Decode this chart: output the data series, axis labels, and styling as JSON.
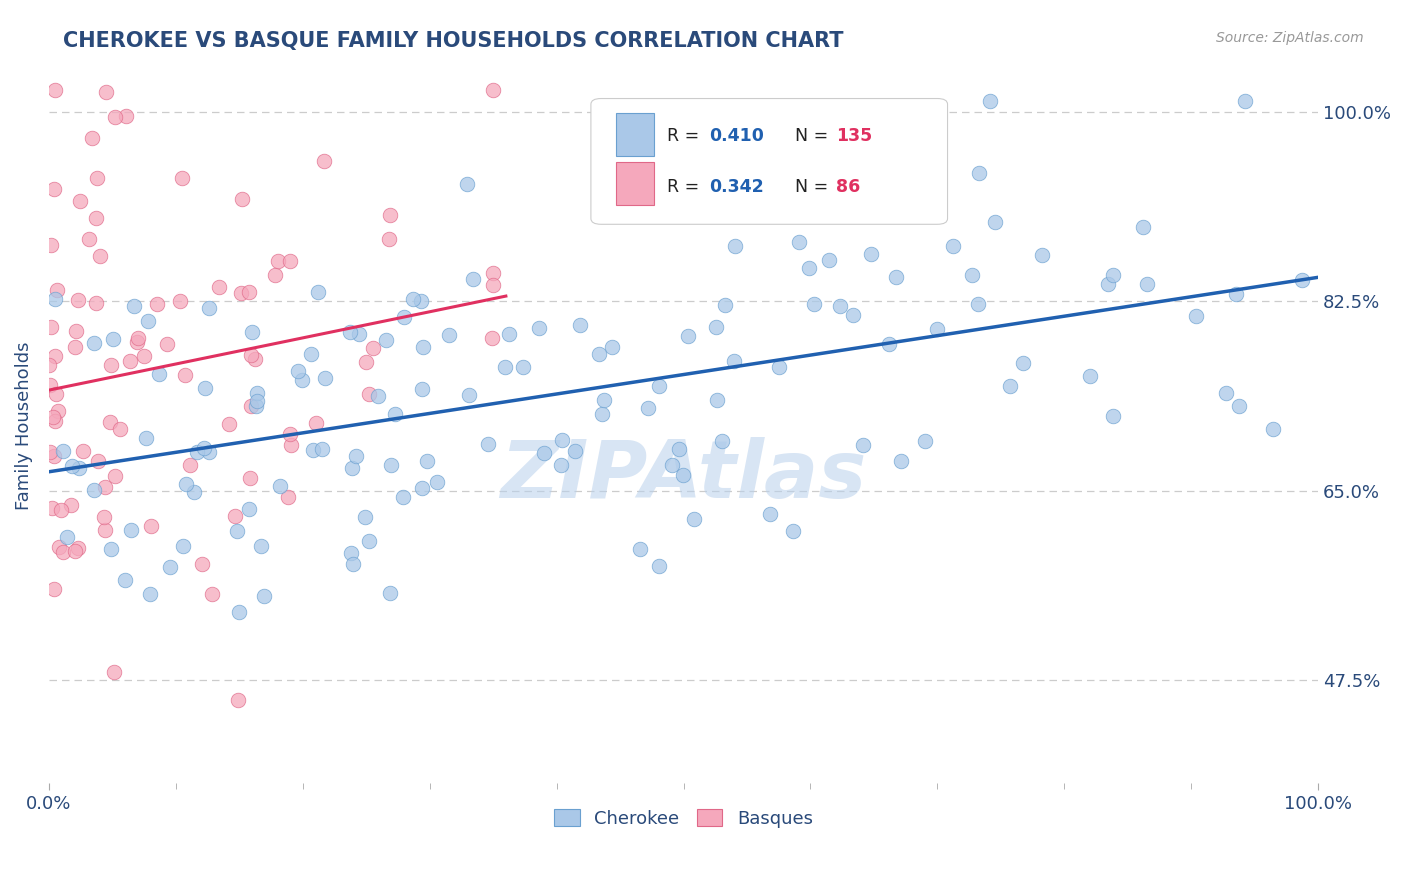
{
  "title": "CHEROKEE VS BASQUE FAMILY HOUSEHOLDS CORRELATION CHART",
  "source": "Source: ZipAtlas.com",
  "ylabel": "Family Households",
  "xlim": [
    0.0,
    1.0
  ],
  "ylim": [
    0.38,
    1.04
  ],
  "yticks": [
    0.475,
    0.65,
    0.825,
    1.0
  ],
  "ytick_labels": [
    "47.5%",
    "65.0%",
    "82.5%",
    "100.0%"
  ],
  "xtick_labels_shown": [
    "0.0%",
    "100.0%"
  ],
  "xticks_shown": [
    0.0,
    1.0
  ],
  "xticks_minor": [
    0.1,
    0.2,
    0.3,
    0.4,
    0.5,
    0.6,
    0.7,
    0.8,
    0.9
  ],
  "cherokee_R": 0.41,
  "cherokee_N": 135,
  "basque_R": 0.342,
  "basque_N": 86,
  "cherokee_color": "#aac8e8",
  "cherokee_edge": "#6aa0d0",
  "basque_color": "#f5a8bc",
  "basque_edge": "#e06888",
  "line_cherokee_color": "#2060b0",
  "line_basque_color": "#e03060",
  "watermark": "ZIPAtlas",
  "background_color": "#ffffff",
  "title_color": "#2a4a7a",
  "axis_label_color": "#2a4a7a",
  "tick_color": "#2a4a7a",
  "legend_R_color": "#2060b0",
  "legend_N_color": "#e03060",
  "grid_color": "#cccccc"
}
